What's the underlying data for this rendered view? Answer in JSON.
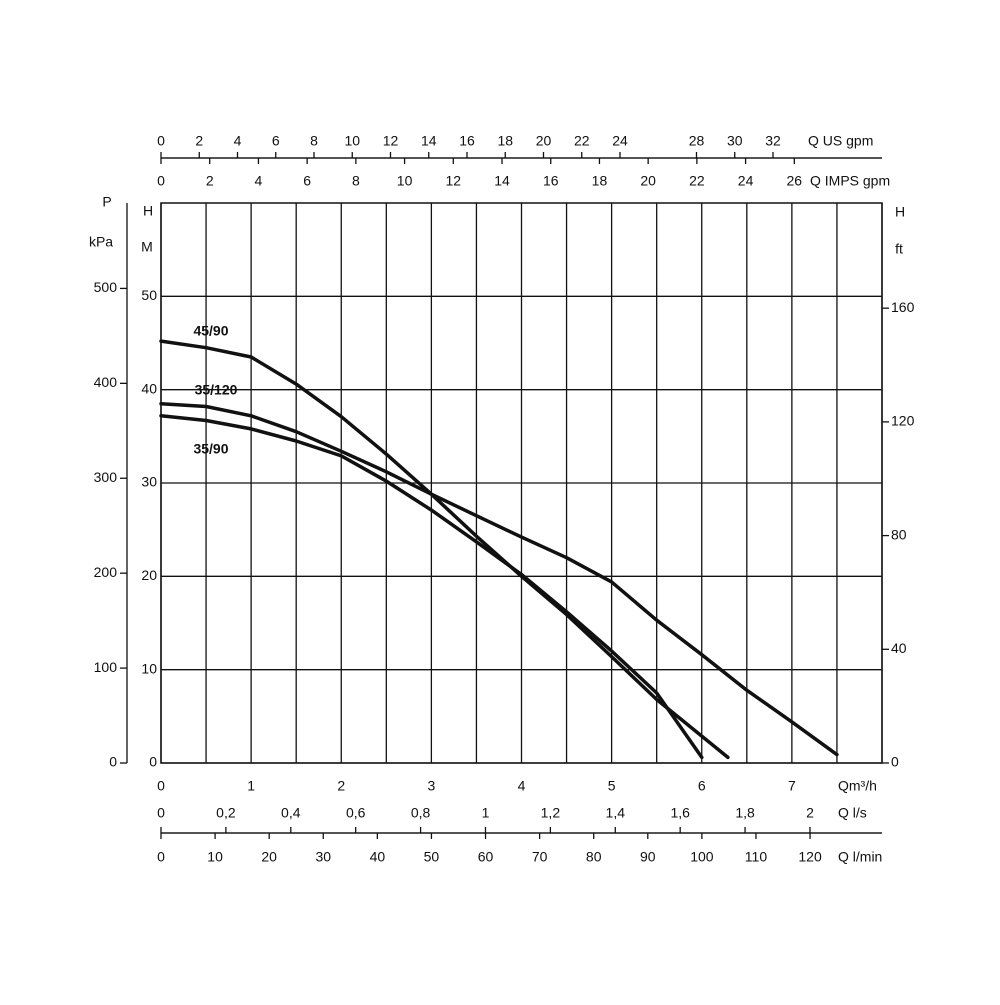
{
  "chart_data": {
    "type": "line",
    "x_label": "Qm³/h",
    "xlim": [
      0,
      8
    ],
    "xticks": [
      0,
      1,
      2,
      3,
      4,
      5,
      6,
      7
    ],
    "xgrid": [
      0.5,
      1.5,
      2.5,
      3.5,
      4.5,
      5.5,
      6.5,
      7.5
    ],
    "y_label": "H",
    "y_unit": "M",
    "ylim": [
      0,
      60
    ],
    "yticks": [
      0,
      10,
      20,
      30,
      40,
      50
    ],
    "grid": true,
    "series": [
      {
        "name": "45/90",
        "color": "#111111",
        "x": [
          0,
          0.5,
          1,
          1.5,
          2,
          2.5,
          3,
          3.5,
          4,
          4.5,
          5,
          5.5,
          6.29
        ],
        "values": [
          45.2,
          44.5,
          43.5,
          40.6,
          37.1,
          33.1,
          28.8,
          24.3,
          20.0,
          15.9,
          11.4,
          6.8,
          0.6
        ]
      },
      {
        "name": "35/120",
        "color": "#111111",
        "x": [
          0,
          0.5,
          1,
          1.5,
          2,
          2.5,
          3,
          3.5,
          4,
          4.5,
          5,
          5.5,
          6,
          6.5,
          7,
          7.5
        ],
        "values": [
          38.5,
          38.2,
          37.2,
          35.5,
          33.4,
          31.2,
          28.8,
          26.5,
          24.2,
          22.0,
          19.4,
          15.3,
          11.6,
          7.8,
          4.4,
          0.9
        ]
      },
      {
        "name": "35/90",
        "color": "#111111",
        "x": [
          0,
          0.5,
          1,
          1.5,
          2,
          2.5,
          3,
          3.5,
          4,
          4.5,
          5,
          5.5,
          6
        ],
        "values": [
          37.2,
          36.7,
          35.8,
          34.5,
          32.9,
          30.2,
          27.1,
          23.7,
          20.2,
          16.2,
          12.0,
          7.5,
          0.6
        ]
      }
    ],
    "extra_axes": [
      {
        "side": "left",
        "label": "P",
        "unit": "kPa",
        "lim": [
          0,
          590
        ],
        "ticks": [
          0,
          100,
          200,
          300,
          400,
          500
        ]
      },
      {
        "side": "right",
        "label": "H",
        "unit": "ft",
        "lim": [
          0,
          197
        ],
        "ticks": [
          0,
          40,
          80,
          120,
          160
        ]
      },
      {
        "side": "top-outer",
        "label": "Q US gpm",
        "lim": [
          0,
          37.7
        ],
        "ticks": [
          0,
          2,
          4,
          6,
          8,
          10,
          12,
          14,
          16,
          18,
          20,
          22,
          24,
          28,
          30,
          32
        ]
      },
      {
        "side": "top-inner",
        "label": "Q IMPS gpm",
        "lim": [
          0,
          29.6
        ],
        "ticks": [
          0,
          2,
          4,
          6,
          8,
          10,
          12,
          14,
          16,
          18,
          20,
          22,
          24,
          26
        ]
      },
      {
        "side": "bottom-inner",
        "label": "Q l/s",
        "lim": [
          0,
          2.222
        ],
        "ticks": [
          0,
          {
            "value": 0.2,
            "label": "0,2"
          },
          {
            "value": 0.4,
            "label": "0,4"
          },
          {
            "value": 0.6,
            "label": "0,6"
          },
          {
            "value": 0.8,
            "label": "0,8"
          },
          1,
          {
            "value": 1.2,
            "label": "1,2"
          },
          {
            "value": 1.4,
            "label": "1,4"
          },
          {
            "value": 1.6,
            "label": "1,6"
          },
          {
            "value": 1.8,
            "label": "1,8"
          },
          2
        ]
      },
      {
        "side": "bottom-outer",
        "label": "Q l/min",
        "lim": [
          0,
          133.3
        ],
        "ticks": [
          0,
          10,
          20,
          30,
          40,
          50,
          60,
          70,
          80,
          90,
          100,
          110,
          120
        ]
      }
    ]
  }
}
